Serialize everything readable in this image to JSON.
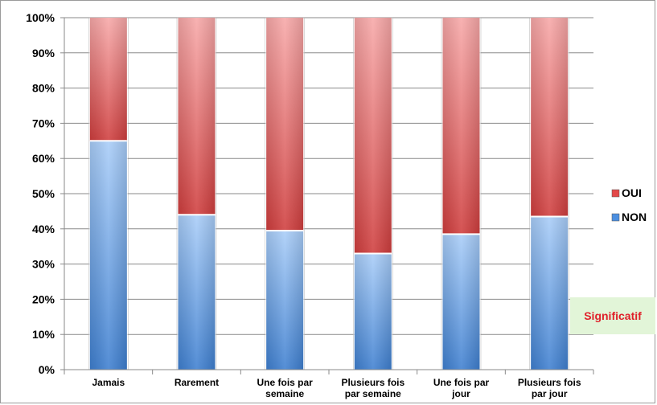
{
  "chart_data": {
    "type": "bar",
    "stacked": true,
    "percent": true,
    "categories": [
      [
        "Jamais"
      ],
      [
        "Rarement"
      ],
      [
        "Une fois par",
        "semaine"
      ],
      [
        "Plusieurs fois",
        "par semaine"
      ],
      [
        "Une fois par",
        "jour"
      ],
      [
        "Plusieurs fois",
        "par jour"
      ]
    ],
    "series": [
      {
        "name": "NON",
        "values": [
          65,
          44,
          39.5,
          33,
          38.5,
          43.5
        ],
        "color_light": "#a9cdf8",
        "color_dark": "#3e7fd0"
      },
      {
        "name": "OUI",
        "values": [
          35,
          56,
          60.5,
          67,
          61.5,
          56.5
        ],
        "color_light": "#f7a8a8",
        "color_dark": "#cf3d3d"
      }
    ],
    "yticks": [
      "0%",
      "10%",
      "20%",
      "30%",
      "40%",
      "50%",
      "60%",
      "70%",
      "80%",
      "90%",
      "100%"
    ],
    "ylim": [
      0,
      100
    ],
    "grid": true,
    "legend_position": "right",
    "legend": [
      {
        "name": "OUI",
        "color": "#e34949"
      },
      {
        "name": "NON",
        "color": "#4c8fe0"
      }
    ],
    "annotation": {
      "text": "Significatif",
      "color": "#e0202a",
      "background": "#e2f5d8"
    }
  }
}
